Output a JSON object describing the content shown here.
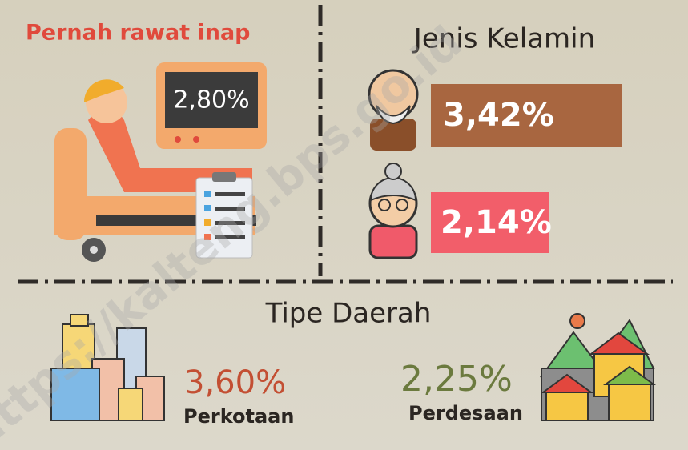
{
  "hospitalization": {
    "title": "Pernah rawat inap",
    "value": "2,80%"
  },
  "gender": {
    "title": "Jenis Kelamin",
    "male": "3,42%",
    "female": "2,14%"
  },
  "region": {
    "title": "Tipe Daerah",
    "urban": {
      "value": "3,60%",
      "label": "Perkotaan"
    },
    "rural": {
      "value": "2,25%",
      "label": "Perdesaan"
    }
  },
  "watermark": "https://kalteng.bps.go.id"
}
